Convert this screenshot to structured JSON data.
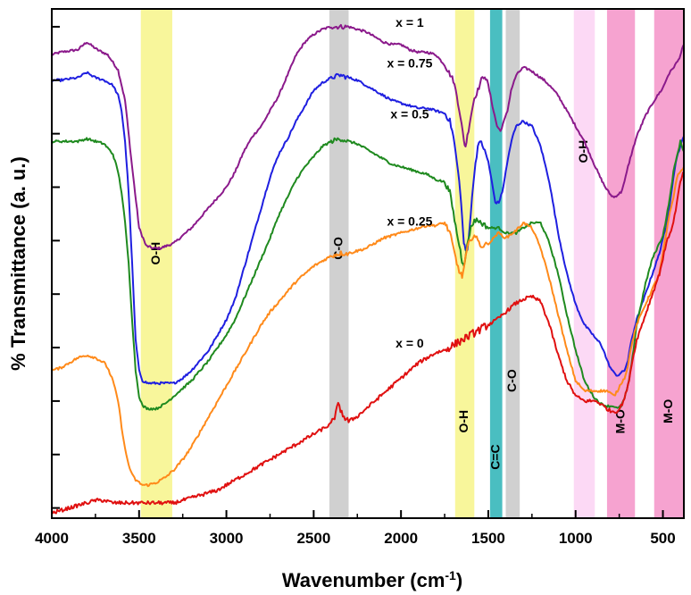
{
  "chart_data": {
    "type": "line",
    "title": "",
    "xlabel": "Wavenumber (cm",
    "xlabel_sup": "-1",
    "xlabel_close": ")",
    "ylabel": "% Transmittance (a. u.)",
    "xlim": [
      4000,
      380
    ],
    "ylim": [
      0,
      100
    ],
    "grid": false,
    "x_ticks": [
      {
        "value": 4000,
        "label": "4000"
      },
      {
        "value": 3500,
        "label": "3500"
      },
      {
        "value": 3000,
        "label": "3000"
      },
      {
        "value": 2500,
        "label": "2500"
      },
      {
        "value": 2000,
        "label": "2000"
      },
      {
        "value": 1500,
        "label": "1500"
      },
      {
        "value": 1000,
        "label": "1000"
      },
      {
        "value": 500,
        "label": "500"
      }
    ],
    "y_ticks": [
      2,
      12.5,
      23,
      33.5,
      44,
      54.5,
      65,
      75.5,
      86,
      96.5
    ],
    "bands": [
      {
        "from": 3490,
        "to": 3310,
        "color": "#f7f489",
        "label": "O-H",
        "label_x": 3400,
        "label_y": 52
      },
      {
        "from": 2410,
        "to": 2300,
        "color": "#c8c8c8",
        "label": "C-O",
        "label_x": 2355,
        "label_y": 53
      },
      {
        "from": 1690,
        "to": 1580,
        "color": "#f7f489",
        "label": "O-H",
        "label_x": 1635,
        "label_y": 19
      },
      {
        "from": 1490,
        "to": 1420,
        "color": "#2ab3b6",
        "label": "C=C",
        "label_x": 1455,
        "label_y": 12
      },
      {
        "from": 1400,
        "to": 1320,
        "color": "#c8c8c8",
        "label": "C-O",
        "label_x": 1360,
        "label_y": 27
      },
      {
        "from": 1010,
        "to": 890,
        "color": "#fcd2f3",
        "label": "O-H",
        "label_x": 950,
        "label_y": 72
      },
      {
        "from": 820,
        "to": 660,
        "color": "#f593c8",
        "label": "M-O",
        "label_x": 740,
        "label_y": 19
      },
      {
        "from": 550,
        "to": 380,
        "color": "#f593c8",
        "label": "M-O",
        "label_x": 465,
        "label_y": 21
      }
    ],
    "series": [
      {
        "name": "x = 1",
        "color": "#8b1a8b",
        "label_x": 1950,
        "label_y": 96.5,
        "noise": 0.45,
        "x": [
          4000,
          3950,
          3850,
          3800,
          3740,
          3680,
          3620,
          3580,
          3540,
          3500,
          3460,
          3420,
          3380,
          3340,
          3300,
          3250,
          3200,
          3150,
          3100,
          3050,
          3000,
          2950,
          2900,
          2850,
          2800,
          2750,
          2700,
          2650,
          2600,
          2550,
          2500,
          2450,
          2400,
          2350,
          2300,
          2250,
          2200,
          2150,
          2100,
          2050,
          2000,
          1950,
          1900,
          1850,
          1800,
          1750,
          1700,
          1680,
          1660,
          1640,
          1630,
          1620,
          1600,
          1580,
          1560,
          1540,
          1520,
          1500,
          1470,
          1450,
          1430,
          1410,
          1390,
          1370,
          1340,
          1300,
          1260,
          1220,
          1180,
          1150,
          1100,
          1050,
          1000,
          950,
          900,
          860,
          830,
          800,
          780,
          760,
          740,
          720,
          700,
          680,
          650,
          600,
          550,
          500,
          470,
          450,
          430,
          410,
          400,
          390,
          380
        ],
        "y": [
          91,
          91.5,
          92,
          93.5,
          92,
          91,
          88,
          82,
          69,
          57,
          53.5,
          53,
          53,
          53.5,
          54,
          55.5,
          57,
          59,
          61,
          63,
          65,
          68,
          72,
          75,
          77,
          80,
          83,
          87,
          91,
          93.5,
          95,
          96,
          96.5,
          96.5,
          96.5,
          96,
          95.5,
          94.5,
          93.5,
          93,
          93,
          92,
          91.5,
          91.5,
          91,
          89,
          86,
          83,
          79,
          74,
          73,
          75,
          79,
          82.5,
          84,
          86,
          87,
          85,
          80,
          77,
          76,
          78,
          80,
          84,
          87,
          88.5,
          88,
          87,
          86,
          85,
          83,
          80,
          77,
          74,
          70,
          67,
          65,
          63.5,
          63,
          63.5,
          64,
          66,
          69,
          71.5,
          75,
          79,
          82,
          84.5,
          87,
          88,
          89,
          90,
          91,
          92,
          93
        ]
      },
      {
        "name": "x = 0.75",
        "color": "#1f1fe0",
        "label_x": 1950,
        "label_y": 88.5,
        "noise": 0.45,
        "x": [
          4000,
          3950,
          3850,
          3800,
          3750,
          3700,
          3650,
          3620,
          3600,
          3580,
          3560,
          3540,
          3520,
          3500,
          3480,
          3450,
          3400,
          3350,
          3300,
          3250,
          3200,
          3150,
          3100,
          3050,
          3000,
          2950,
          2900,
          2850,
          2800,
          2750,
          2700,
          2650,
          2600,
          2550,
          2500,
          2450,
          2400,
          2350,
          2300,
          2250,
          2200,
          2150,
          2100,
          2050,
          2000,
          1950,
          1900,
          1850,
          1800,
          1750,
          1720,
          1700,
          1680,
          1660,
          1650,
          1640,
          1630,
          1620,
          1600,
          1580,
          1560,
          1540,
          1520,
          1500,
          1480,
          1460,
          1440,
          1420,
          1400,
          1380,
          1360,
          1340,
          1300,
          1280,
          1250,
          1200,
          1150,
          1100,
          1050,
          1000,
          950,
          900,
          880,
          860,
          840,
          820,
          800,
          780,
          760,
          740,
          720,
          700,
          680,
          650,
          600,
          560,
          520,
          500,
          480,
          460,
          440,
          420,
          400,
          380
        ],
        "y": [
          86,
          86,
          86.5,
          87.5,
          86.5,
          86,
          85,
          83,
          80,
          74,
          64,
          50,
          35,
          29,
          27,
          26.5,
          26.5,
          26.5,
          26.5,
          27.5,
          29,
          31,
          33,
          36,
          39,
          43,
          49,
          55,
          61,
          67,
          71.5,
          74.5,
          78,
          81,
          84,
          85.5,
          86.5,
          87,
          86.5,
          86,
          85,
          84,
          83,
          82,
          81.5,
          81,
          80.5,
          80.5,
          80,
          79.5,
          78,
          75,
          70,
          64,
          59,
          54,
          52.5,
          52.5,
          60,
          68,
          73,
          74,
          72,
          70,
          66,
          62,
          62,
          64,
          68,
          72,
          75,
          77,
          78,
          77.5,
          77,
          73,
          66,
          56,
          48,
          42,
          38,
          36,
          35,
          34.5,
          33,
          31,
          29.5,
          28.5,
          28,
          28.5,
          29,
          31,
          35,
          39,
          44,
          48,
          52,
          55,
          57,
          62,
          67,
          71,
          73,
          75
        ]
      },
      {
        "name": "x = 0.5",
        "color": "#1f8a1f",
        "label_x": 1950,
        "label_y": 78.5,
        "noise": 0.45,
        "x": [
          4000,
          3950,
          3900,
          3850,
          3800,
          3750,
          3700,
          3650,
          3620,
          3600,
          3580,
          3560,
          3540,
          3520,
          3500,
          3480,
          3450,
          3400,
          3350,
          3300,
          3250,
          3200,
          3150,
          3100,
          3050,
          3000,
          2950,
          2900,
          2850,
          2800,
          2750,
          2700,
          2650,
          2600,
          2550,
          2500,
          2450,
          2400,
          2350,
          2300,
          2250,
          2200,
          2150,
          2100,
          2050,
          2000,
          1950,
          1900,
          1850,
          1800,
          1750,
          1720,
          1700,
          1680,
          1660,
          1650,
          1640,
          1630,
          1620,
          1600,
          1580,
          1560,
          1540,
          1520,
          1500,
          1480,
          1460,
          1440,
          1420,
          1400,
          1380,
          1360,
          1340,
          1300,
          1250,
          1200,
          1150,
          1100,
          1050,
          1000,
          950,
          900,
          860,
          820,
          800,
          780,
          760,
          740,
          720,
          700,
          680,
          650,
          600,
          560,
          520,
          500,
          480,
          460,
          440,
          420,
          400,
          390,
          380
        ],
        "y": [
          74,
          74,
          74,
          74,
          74.5,
          74,
          73.5,
          71.5,
          68,
          64,
          58,
          50,
          39,
          29,
          24,
          22,
          21.5,
          21.5,
          22.5,
          24,
          25.5,
          27,
          29,
          31,
          33.5,
          36,
          39,
          43,
          47,
          51,
          55,
          59.5,
          63,
          66.5,
          69,
          71,
          73,
          74,
          74.5,
          74,
          73.5,
          72.5,
          71.5,
          70.5,
          69.5,
          69,
          68.5,
          68,
          67.5,
          66.5,
          66,
          64,
          60,
          56,
          52.5,
          50.5,
          50,
          51,
          54,
          57,
          58.5,
          58.5,
          58,
          57.5,
          57,
          57,
          57,
          57,
          56.5,
          56,
          56,
          56,
          56,
          57,
          58,
          58,
          54,
          48,
          40,
          33,
          27,
          24,
          22.5,
          22,
          22,
          22,
          21.5,
          22,
          23.5,
          26,
          30,
          38,
          46,
          51,
          54,
          55.5,
          59,
          63,
          68,
          71,
          74,
          73,
          72
        ]
      },
      {
        "name": "x = 0.25",
        "color": "#ff8a1a",
        "label_x": 1950,
        "label_y": 57.5,
        "noise": 0.5,
        "x": [
          4000,
          3950,
          3900,
          3850,
          3800,
          3750,
          3700,
          3680,
          3650,
          3620,
          3600,
          3580,
          3560,
          3540,
          3520,
          3500,
          3480,
          3450,
          3400,
          3350,
          3300,
          3250,
          3200,
          3150,
          3100,
          3050,
          3000,
          2950,
          2900,
          2850,
          2800,
          2750,
          2700,
          2650,
          2600,
          2550,
          2500,
          2450,
          2400,
          2350,
          2300,
          2250,
          2200,
          2150,
          2100,
          2050,
          2000,
          1950,
          1900,
          1850,
          1800,
          1750,
          1720,
          1700,
          1680,
          1660,
          1650,
          1640,
          1630,
          1620,
          1600,
          1580,
          1560,
          1540,
          1520,
          1500,
          1480,
          1460,
          1440,
          1420,
          1400,
          1380,
          1360,
          1340,
          1300,
          1250,
          1200,
          1150,
          1100,
          1050,
          1000,
          950,
          900,
          860,
          820,
          800,
          780,
          760,
          740,
          720,
          700,
          680,
          650,
          600,
          560,
          520,
          500,
          480,
          460,
          440,
          420,
          400,
          380
        ],
        "y": [
          29,
          29.5,
          30.5,
          31.5,
          32,
          31.5,
          30.5,
          29.5,
          27,
          23,
          18,
          13.5,
          10.5,
          8.5,
          7.5,
          7,
          6.5,
          6.5,
          7,
          8,
          9.5,
          11.5,
          14,
          17,
          20,
          23,
          26,
          29,
          32,
          35,
          38,
          40.5,
          42.5,
          44.5,
          46.5,
          48,
          49.5,
          50.5,
          51.5,
          52,
          52,
          52.5,
          53,
          54,
          55,
          55.5,
          56,
          56.5,
          57,
          57.5,
          57.5,
          58,
          56,
          53,
          50,
          48,
          47.5,
          49,
          51,
          53,
          55,
          55.5,
          54.5,
          53.5,
          53.5,
          54,
          54.5,
          55.5,
          56,
          55.5,
          55,
          55.5,
          56,
          56.5,
          58,
          57,
          53,
          47,
          40,
          33,
          27,
          25,
          25,
          25,
          25,
          24.5,
          24,
          25,
          26.5,
          27.5,
          30,
          34,
          38,
          42,
          45,
          48,
          52,
          56,
          60,
          63,
          67,
          68,
          69
        ]
      },
      {
        "name": "x = 0",
        "color": "#e01010",
        "label_x": 1950,
        "label_y": 33.5,
        "noise": 0.7,
        "x": [
          4000,
          3950,
          3900,
          3850,
          3800,
          3750,
          3700,
          3650,
          3600,
          3550,
          3500,
          3450,
          3400,
          3350,
          3300,
          3250,
          3200,
          3150,
          3100,
          3050,
          3000,
          2950,
          2900,
          2850,
          2800,
          2750,
          2700,
          2650,
          2600,
          2550,
          2500,
          2450,
          2400,
          2380,
          2360,
          2340,
          2320,
          2300,
          2250,
          2200,
          2150,
          2100,
          2050,
          2000,
          1950,
          1900,
          1850,
          1800,
          1750,
          1700,
          1650,
          1600,
          1550,
          1500,
          1450,
          1400,
          1350,
          1300,
          1250,
          1200,
          1150,
          1100,
          1050,
          1000,
          950,
          900,
          880,
          860,
          840,
          820,
          800,
          780,
          760,
          740,
          720,
          700,
          680,
          650,
          600,
          560,
          520,
          500,
          480,
          460,
          440,
          420,
          400,
          390,
          380
        ],
        "y": [
          1,
          1.5,
          2,
          2.5,
          3,
          3.5,
          3.5,
          3,
          3,
          3,
          3,
          3,
          3,
          3,
          3,
          3.5,
          4,
          4.5,
          5,
          5.5,
          6.5,
          7.5,
          8.5,
          9.5,
          10.5,
          11.5,
          12.5,
          13.5,
          14.5,
          15.5,
          16.5,
          17.5,
          18.5,
          20,
          22,
          21,
          19.5,
          19,
          20,
          21.5,
          23,
          24.5,
          26,
          27.5,
          29,
          30.5,
          31.5,
          32.5,
          33,
          34,
          35,
          36,
          37,
          38,
          39,
          40.5,
          42,
          43,
          43.5,
          42.5,
          38,
          32,
          27,
          24,
          23,
          23,
          23,
          22.5,
          22,
          21.5,
          21,
          21,
          21,
          22,
          23.5,
          26,
          30,
          35,
          40,
          44,
          48,
          51,
          54,
          56,
          58,
          62,
          66,
          67,
          68
        ]
      }
    ]
  }
}
